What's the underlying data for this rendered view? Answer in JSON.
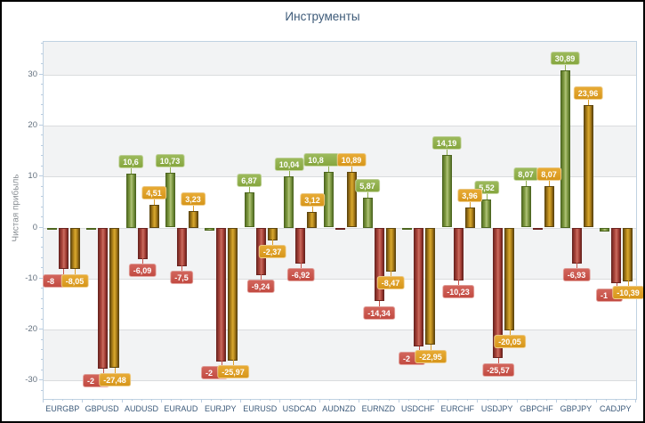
{
  "window": {
    "title": "Инструменты"
  },
  "chart_data": {
    "type": "bar",
    "title": "Инструменты",
    "ylabel": "Чистая прибыль",
    "xlabel": "",
    "legend_position": "none",
    "grid": true,
    "ylim": [
      -33.6,
      36.4
    ],
    "yticks": [
      30,
      20,
      10,
      0,
      -10,
      -20,
      -30
    ],
    "categories": [
      "EURGBP",
      "GBPUSD",
      "AUDUSD",
      "EURAUD",
      "EURJPY",
      "EURUSD",
      "USDCAD",
      "AUDNZD",
      "EURNZD",
      "USDCHF",
      "EURCHF",
      "USDJPY",
      "GBPCHF",
      "GBPJPY",
      "CADJPY"
    ],
    "series": [
      {
        "name": "green",
        "bar_color": "#85a046",
        "label_color": "#8fae4e",
        "values": [
          -0.4,
          -0.4,
          10.6,
          10.73,
          -0.5,
          6.87,
          10.04,
          10.88,
          5.87,
          -0.4,
          14.19,
          5.52,
          8.07,
          30.89,
          -0.7
        ],
        "labels": [
          null,
          null,
          "10,6",
          "10,73",
          null,
          "6,87",
          "10,04",
          {
            "text": "10,8",
            "cut": true
          },
          "5,87",
          null,
          "14,19",
          "5,52",
          "8,07",
          "30,89",
          null
        ]
      },
      {
        "name": "red",
        "bar_color": "#b0453f",
        "label_color": "#cb554c",
        "values": [
          -8.1,
          -27.6,
          -6.09,
          -7.5,
          -26.1,
          -9.24,
          -6.92,
          -0.4,
          -14.34,
          -23.3,
          -10.23,
          -25.57,
          -0.4,
          -6.93,
          -10.9
        ],
        "labels": [
          {
            "text": "-8",
            "cut": true
          },
          {
            "text": "-2",
            "cut": true
          },
          "-6,09",
          "-7,5",
          {
            "text": "-2",
            "cut": true
          },
          "-9,24",
          "-6,92",
          null,
          "-14,34",
          {
            "text": "-2",
            "cut": true
          },
          "-10,23",
          "-25,57",
          null,
          "-6,93",
          {
            "text": "-1",
            "cut": true
          }
        ]
      },
      {
        "name": "gold",
        "bar_color": "#c8961e",
        "label_color": "#de9e26",
        "values": [
          -8.05,
          -27.48,
          4.51,
          3.23,
          -25.97,
          -2.37,
          3.12,
          10.89,
          -8.47,
          -22.95,
          3.96,
          -20.05,
          8.07,
          23.96,
          -10.39
        ],
        "labels": [
          "-8,05",
          "-27,48",
          "4,51",
          "3,23",
          "-25,97",
          "-2,37",
          "3,12",
          "10,89",
          "-8,47",
          "-22,95",
          "3,96",
          "-20,05",
          "8,07",
          "23,96",
          "-10,39"
        ]
      }
    ]
  }
}
